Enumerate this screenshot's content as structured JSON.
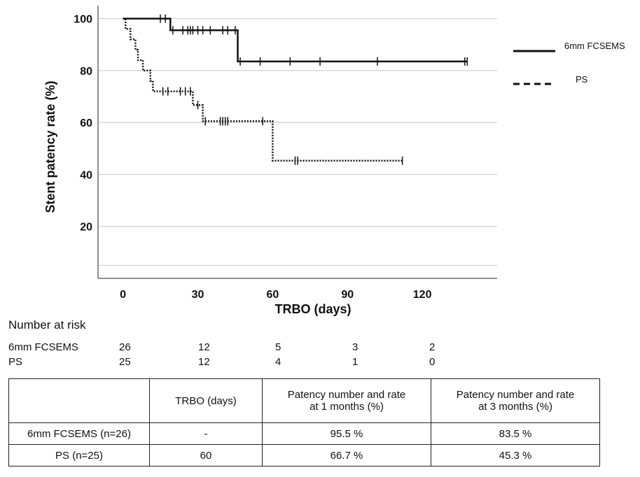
{
  "chart_data": {
    "type": "line",
    "xlabel": "TRBO (days)",
    "ylabel": "Stent patency rate (%)",
    "xlim": [
      -10,
      150
    ],
    "ylim": [
      0,
      105
    ],
    "x_ticks": [
      0,
      30,
      60,
      90,
      120
    ],
    "y_ticks": [
      20,
      40,
      60,
      80,
      100
    ],
    "grid": "horizontal",
    "legend_position": "right",
    "series": [
      {
        "name": "6mm FCSEMS",
        "style": "solid",
        "steps": [
          [
            0,
            100
          ],
          [
            19,
            100
          ],
          [
            19,
            95.5
          ],
          [
            46,
            95.5
          ],
          [
            46,
            83.5
          ],
          [
            138,
            83.5
          ]
        ],
        "censors": [
          [
            15,
            100
          ],
          [
            17,
            100
          ],
          [
            20,
            95.5
          ],
          [
            24,
            95.5
          ],
          [
            26,
            95.5
          ],
          [
            27,
            95.5
          ],
          [
            28,
            95.5
          ],
          [
            30,
            95.5
          ],
          [
            32,
            95.5
          ],
          [
            35,
            95.5
          ],
          [
            40,
            95.5
          ],
          [
            42,
            95.5
          ],
          [
            45,
            95.5
          ],
          [
            47,
            83.5
          ],
          [
            55,
            83.5
          ],
          [
            67,
            83.5
          ],
          [
            79,
            83.5
          ],
          [
            102,
            83.5
          ],
          [
            137,
            83.5
          ],
          [
            138,
            83.5
          ]
        ]
      },
      {
        "name": "PS",
        "style": "dotted",
        "steps": [
          [
            0,
            100
          ],
          [
            1,
            100
          ],
          [
            1,
            96
          ],
          [
            3,
            96
          ],
          [
            3,
            92
          ],
          [
            5,
            92
          ],
          [
            5,
            88
          ],
          [
            6,
            88
          ],
          [
            6,
            84
          ],
          [
            8,
            84
          ],
          [
            8,
            80
          ],
          [
            11,
            80
          ],
          [
            11,
            76
          ],
          [
            12,
            76
          ],
          [
            12,
            72
          ],
          [
            28,
            72
          ],
          [
            28,
            66.7
          ],
          [
            32,
            66.7
          ],
          [
            32,
            60.5
          ],
          [
            60,
            60.5
          ],
          [
            60,
            45.3
          ],
          [
            112,
            45.3
          ]
        ],
        "censors": [
          [
            16,
            72
          ],
          [
            18,
            72
          ],
          [
            23,
            72
          ],
          [
            25,
            72
          ],
          [
            27,
            72
          ],
          [
            30,
            66.7
          ],
          [
            33,
            60.5
          ],
          [
            39,
            60.5
          ],
          [
            40,
            60.5
          ],
          [
            41,
            60.5
          ],
          [
            42,
            60.5
          ],
          [
            56,
            60.5
          ],
          [
            69,
            45.3
          ],
          [
            70,
            45.3
          ],
          [
            112,
            45.3
          ]
        ]
      }
    ]
  },
  "risk_table": {
    "title": "Number at risk",
    "rows": [
      {
        "name": "6mm FCSEMS",
        "values": [
          "26",
          "12",
          "5",
          "3",
          "2"
        ]
      },
      {
        "name": "PS",
        "values": [
          "25",
          "12",
          "4",
          "1",
          "0"
        ]
      }
    ]
  },
  "summary_table": {
    "headers": [
      "",
      "TRBO (days)",
      "Patency number and rate\nat 1 months (%)",
      "Patency number and rate\nat 3 months (%)"
    ],
    "rows": [
      [
        "6mm FCSEMS (n=26)",
        "-",
        "95.5 %",
        "83.5 %"
      ],
      [
        "PS (n=25)",
        "60",
        "66.7 %",
        "45.3 %"
      ]
    ]
  }
}
